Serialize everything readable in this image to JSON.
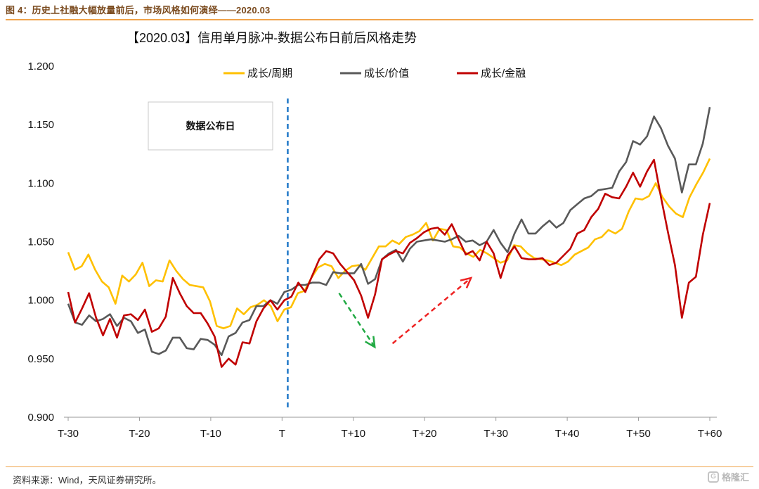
{
  "figure": {
    "caption": "图 4：历史上社融大幅放量前后，市场风格如何演绎——2020.03",
    "source": "资料来源：Wind，天风证券研究所。",
    "watermark": "格隆汇",
    "watermark_logo_text": "G"
  },
  "chart_data": {
    "type": "line",
    "title": "【2020.03】信用单月脉冲-数据公布日前后风格走势",
    "annotation": "数据公布日",
    "ylim": [
      0.9,
      1.2
    ],
    "yticks": [
      "1.200",
      "1.150",
      "1.100",
      "1.050",
      "1.000",
      "0.950",
      "0.900"
    ],
    "yticks_values": [
      1.2,
      1.15,
      1.1,
      1.05,
      1.0,
      0.95,
      0.9
    ],
    "xlim": [
      -30,
      60
    ],
    "xticks": [
      {
        "x": -30,
        "label": "T-30"
      },
      {
        "x": -20,
        "label": "T-20"
      },
      {
        "x": -10,
        "label": "T-10"
      },
      {
        "x": 0,
        "label": "T"
      },
      {
        "x": 10,
        "label": "T+10"
      },
      {
        "x": 20,
        "label": "T+20"
      },
      {
        "x": 30,
        "label": "T+30"
      },
      {
        "x": 40,
        "label": "T+40"
      },
      {
        "x": 50,
        "label": "T+50"
      },
      {
        "x": 60,
        "label": "T+60"
      }
    ],
    "event_x": 0.8,
    "arrows": [
      {
        "from": [
          8,
          1.006
        ],
        "to": [
          13,
          0.96
        ],
        "color": "#22aa44"
      },
      {
        "from": [
          15.5,
          0.963
        ],
        "to": [
          26.5,
          1.019
        ],
        "color": "#ee2222"
      }
    ],
    "series": [
      {
        "name": "成长/周期",
        "color": "#ffc000",
        "values": [
          1.041,
          1.026,
          1.029,
          1.039,
          1.026,
          1.016,
          1.011,
          0.997,
          1.021,
          1.016,
          1.022,
          1.032,
          1.012,
          1.017,
          1.016,
          1.034,
          1.025,
          1.018,
          1.013,
          1.012,
          1.011,
          0.999,
          0.978,
          0.976,
          0.978,
          0.993,
          0.988,
          0.994,
          0.996,
          1.0,
          0.995,
          0.982,
          0.992,
          0.994,
          1.006,
          1.008,
          1.019,
          1.028,
          1.031,
          1.029,
          1.019,
          1.025,
          1.029,
          1.03,
          1.026,
          1.036,
          1.046,
          1.046,
          1.051,
          1.048,
          1.054,
          1.056,
          1.059,
          1.066,
          1.051,
          1.061,
          1.06,
          1.046,
          1.045,
          1.04,
          1.037,
          1.043,
          1.04,
          1.036,
          1.032,
          1.034,
          1.047,
          1.046,
          1.04,
          1.036,
          1.035,
          1.034,
          1.032,
          1.03,
          1.033,
          1.039,
          1.042,
          1.045,
          1.052,
          1.054,
          1.06,
          1.057,
          1.061,
          1.076,
          1.087,
          1.086,
          1.089,
          1.1,
          1.088,
          1.08,
          1.074,
          1.071,
          1.088,
          1.099,
          1.109,
          1.121
        ]
      },
      {
        "name": "成长/价值",
        "color": "#595959",
        "values": [
          0.997,
          0.981,
          0.979,
          0.987,
          0.982,
          0.984,
          0.988,
          0.978,
          0.985,
          0.982,
          0.972,
          0.975,
          0.956,
          0.954,
          0.957,
          0.968,
          0.968,
          0.959,
          0.958,
          0.967,
          0.966,
          0.962,
          0.953,
          0.969,
          0.972,
          0.981,
          0.983,
          0.995,
          0.995,
          1.0,
          0.997,
          1.007,
          1.009,
          1.013,
          1.013,
          1.015,
          1.015,
          1.013,
          1.024,
          1.023,
          1.023,
          1.023,
          1.031,
          1.014,
          1.018,
          1.035,
          1.04,
          1.043,
          1.033,
          1.044,
          1.05,
          1.051,
          1.052,
          1.051,
          1.05,
          1.052,
          1.055,
          1.05,
          1.051,
          1.047,
          1.05,
          1.06,
          1.049,
          1.041,
          1.057,
          1.069,
          1.057,
          1.057,
          1.063,
          1.068,
          1.062,
          1.066,
          1.077,
          1.082,
          1.087,
          1.089,
          1.094,
          1.095,
          1.096,
          1.11,
          1.118,
          1.136,
          1.133,
          1.14,
          1.157,
          1.147,
          1.132,
          1.121,
          1.092,
          1.116,
          1.116,
          1.134,
          1.165
        ]
      },
      {
        "name": "成长/金融",
        "color": "#c00000",
        "values": [
          1.007,
          0.981,
          0.993,
          1.006,
          0.985,
          0.97,
          0.984,
          0.968,
          0.987,
          0.988,
          0.983,
          0.992,
          0.973,
          0.976,
          0.986,
          1.019,
          1.006,
          0.995,
          0.989,
          0.989,
          0.98,
          0.969,
          0.943,
          0.95,
          0.945,
          0.964,
          0.963,
          0.982,
          0.993,
          1.0,
          0.992,
          1.0,
          1.003,
          1.015,
          1.007,
          1.021,
          1.035,
          1.042,
          1.04,
          1.031,
          1.024,
          1.017,
          1.004,
          0.985,
          1.005,
          1.035,
          1.039,
          1.042,
          1.04,
          1.049,
          1.053,
          1.058,
          1.061,
          1.062,
          1.056,
          1.065,
          1.052,
          1.039,
          1.042,
          1.034,
          1.05,
          1.04,
          1.019,
          1.038,
          1.046,
          1.036,
          1.035,
          1.035,
          1.036,
          1.03,
          1.032,
          1.038,
          1.044,
          1.057,
          1.06,
          1.071,
          1.078,
          1.091,
          1.088,
          1.087,
          1.097,
          1.109,
          1.097,
          1.11,
          1.12,
          1.088,
          1.058,
          1.03,
          0.985,
          1.015,
          1.02,
          1.056,
          1.083
        ]
      }
    ]
  }
}
